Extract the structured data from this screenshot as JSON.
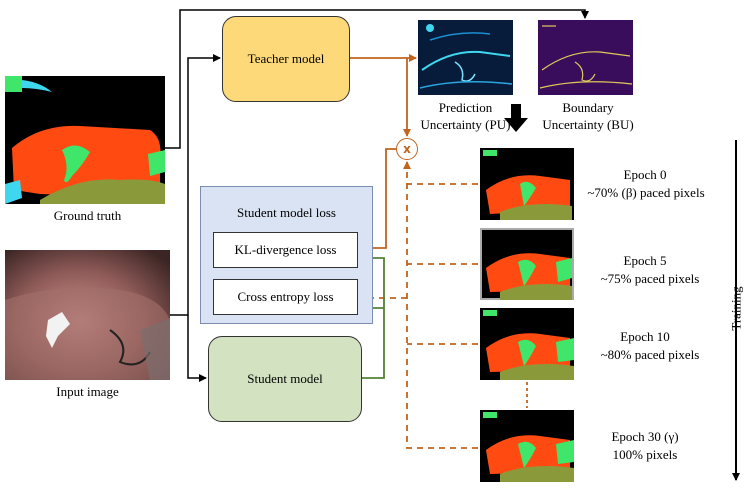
{
  "nodes": {
    "teacher": "Teacher model",
    "student": "Student model",
    "loss_group": "Student model loss",
    "kl_loss": "KL-divergence loss",
    "ce_loss": "Cross entropy loss",
    "multiply": "x"
  },
  "images": {
    "ground_truth": "Ground truth",
    "input": "Input image",
    "pu": "Prediction\nUncertainty (PU)",
    "bu": "Boundary\nUncertainty (BU)"
  },
  "epochs": [
    {
      "label": "Epoch 0",
      "pixels": "~70% (β) paced pixels"
    },
    {
      "label": "Epoch 5",
      "pixels": "~75% paced pixels"
    },
    {
      "label": "Epoch 10",
      "pixels": "~80% paced pixels"
    },
    {
      "label": "Epoch 30 (γ)",
      "pixels": "100% pixels"
    }
  ],
  "axis_label": "Training",
  "colors": {
    "teacher_fill": "#fdd97a",
    "student_fill": "#d3e3c2",
    "loss_group_fill": "#dae3f3",
    "teacher_arrow": "#c0641e",
    "student_arrow": "#548235",
    "organ_red": "#ff4a12",
    "organ_green": "#3fe66a",
    "organ_olive": "#8a9a3a",
    "organ_cyan": "#3fd6f0"
  }
}
